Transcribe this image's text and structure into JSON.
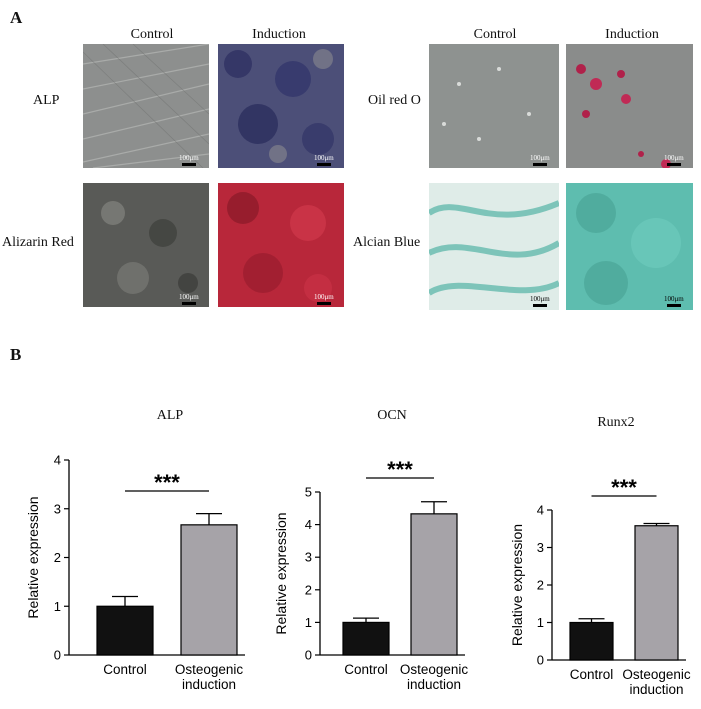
{
  "panel_a": {
    "letter": "A",
    "left_group": {
      "col_control": "Control",
      "col_induction": "Induction",
      "rows": [
        {
          "label": "ALP",
          "control_scale": "100μm",
          "induction_scale": "100μm"
        },
        {
          "label": "Alizarin Red",
          "control_scale": "100μm",
          "induction_scale": "100μm"
        }
      ]
    },
    "right_group": {
      "col_control": "Control",
      "col_induction": "Induction",
      "rows": [
        {
          "label": "Oil red O",
          "control_scale": "100μm",
          "induction_scale": "100μm"
        },
        {
          "label": "Alcian Blue",
          "control_scale": "100μm",
          "induction_scale": "100μm"
        }
      ]
    }
  },
  "panel_b": {
    "letter": "B"
  },
  "colors": {
    "control_bar": "#111111",
    "induction_bar": "#a6a3a8"
  },
  "chart_data": [
    {
      "type": "bar",
      "title": "ALP",
      "ylabel": "Relative expression",
      "categories": [
        "Control",
        "Osteogenic\ninduction"
      ],
      "values": [
        1.0,
        2.67
      ],
      "errors": [
        0.2,
        0.23
      ],
      "ylim": [
        0,
        4
      ],
      "yticks": [
        0,
        1,
        2,
        3,
        4
      ],
      "significance": "***"
    },
    {
      "type": "bar",
      "title": "OCN",
      "ylabel": "Relative expression",
      "categories": [
        "Control",
        "Osteogenic\ninduction"
      ],
      "values": [
        1.0,
        4.33
      ],
      "errors": [
        0.13,
        0.37
      ],
      "ylim": [
        0,
        5
      ],
      "yticks": [
        0,
        1,
        2,
        3,
        4,
        5
      ],
      "significance": "***"
    },
    {
      "type": "bar",
      "title": "Runx2",
      "ylabel": "Relative expression",
      "categories": [
        "Control",
        "Osteogenic\ninduction"
      ],
      "values": [
        1.0,
        3.58
      ],
      "errors": [
        0.1,
        0.06
      ],
      "ylim": [
        0,
        4
      ],
      "yticks": [
        0,
        1,
        2,
        3,
        4
      ],
      "significance": "***"
    }
  ]
}
